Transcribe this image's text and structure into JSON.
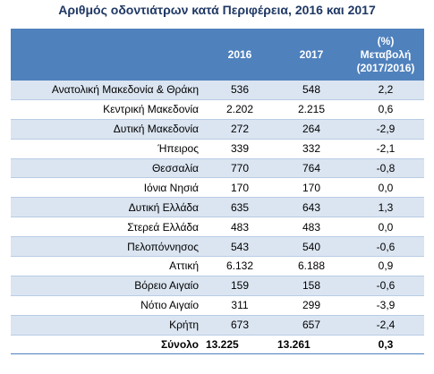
{
  "title": "Αριθμός οδοντιάτρων κατά Περιφέρεια, 2016 και 2017",
  "table": {
    "headers": {
      "region": "",
      "y2016": "2016",
      "y2017": "2017",
      "change_l1": "(%)",
      "change_l2": "Μεταβολή",
      "change_l3": "(2017/2016)"
    },
    "rows": [
      {
        "region": "Ανατολική Μακεδονία & Θράκη",
        "y2016": "536",
        "y2017": "548",
        "change": "2,2"
      },
      {
        "region": "Κεντρική Μακεδονία",
        "y2016": "2.202",
        "y2017": "2.215",
        "change": "0,6"
      },
      {
        "region": "Δυτική Μακεδονία",
        "y2016": "272",
        "y2017": "264",
        "change": "-2,9"
      },
      {
        "region": "Ήπειρος",
        "y2016": "339",
        "y2017": "332",
        "change": "-2,1"
      },
      {
        "region": "Θεσσαλία",
        "y2016": "770",
        "y2017": "764",
        "change": "-0,8"
      },
      {
        "region": "Ιόνια Νησιά",
        "y2016": "170",
        "y2017": "170",
        "change": "0,0"
      },
      {
        "region": "Δυτική Ελλάδα",
        "y2016": "635",
        "y2017": "643",
        "change": "1,3"
      },
      {
        "region": "Στερεά Ελλάδα",
        "y2016": "483",
        "y2017": "483",
        "change": "0,0"
      },
      {
        "region": "Πελοπόννησος",
        "y2016": "543",
        "y2017": "540",
        "change": "-0,6"
      },
      {
        "region": "Αττική",
        "y2016": "6.132",
        "y2017": "6.188",
        "change": "0,9"
      },
      {
        "region": "Βόρειο Αιγαίο",
        "y2016": "159",
        "y2017": "158",
        "change": "-0,6"
      },
      {
        "region": "Νότιο Αιγαίο",
        "y2016": "311",
        "y2017": "299",
        "change": "-3,9"
      },
      {
        "region": "Κρήτη",
        "y2016": "673",
        "y2017": "657",
        "change": "-2,4"
      }
    ],
    "total": {
      "region": "Σύνολο",
      "y2016": "13.225",
      "y2017": "13.261",
      "change": "0,3"
    }
  }
}
